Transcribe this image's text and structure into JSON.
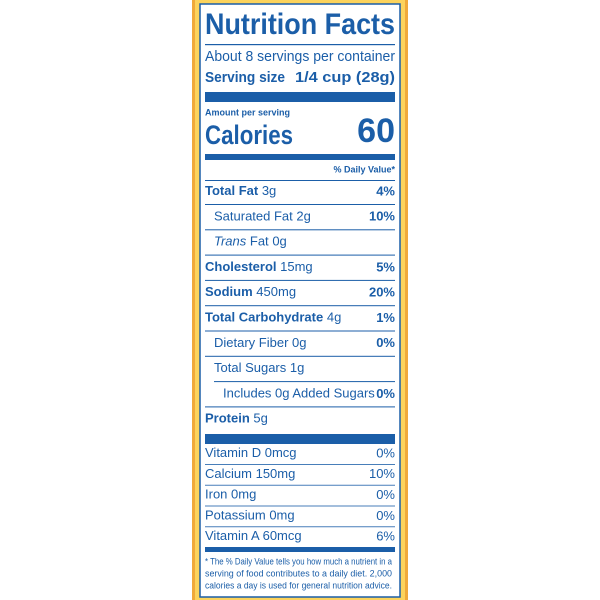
{
  "header": {
    "title": "Nutrition Facts",
    "servings": "About 8 servings per container",
    "serving_size_label": "Serving size",
    "serving_size_value": "1/4 cup (28g)"
  },
  "calories": {
    "amount_label": "Amount per serving",
    "label": "Calories",
    "value": "60"
  },
  "daily_value_header": "% Daily Value*",
  "nutrients": [
    {
      "name": "Total Fat",
      "amount": "3g",
      "dv": "4%"
    },
    {
      "name": "Saturated Fat",
      "amount": "2g",
      "dv": "10%"
    },
    {
      "prefix": "Trans",
      "name": "Fat",
      "amount": "0g"
    },
    {
      "name": "Cholesterol",
      "amount": "15mg",
      "dv": "5%"
    },
    {
      "name": "Sodium",
      "amount": "450mg",
      "dv": "20%"
    },
    {
      "name": "Total Carbohydrate",
      "amount": "4g",
      "dv": "1%"
    },
    {
      "name": "Dietary Fiber",
      "amount": "0g",
      "dv": "0%"
    },
    {
      "name": "Total Sugars",
      "amount": "1g"
    },
    {
      "name": "Includes 0g Added Sugars",
      "dv": "0%"
    },
    {
      "name": "Protein",
      "amount": "5g"
    }
  ],
  "vitamins": [
    {
      "name": "Vitamin D",
      "amount": "0mcg",
      "dv": "0%"
    },
    {
      "name": "Calcium",
      "amount": "150mg",
      "dv": "10%"
    },
    {
      "name": "Iron",
      "amount": "0mg",
      "dv": "0%"
    },
    {
      "name": "Potassium",
      "amount": "0mg",
      "dv": "0%"
    },
    {
      "name": "Vitamin A",
      "amount": "60mcg",
      "dv": "6%"
    }
  ],
  "footnote": {
    "lines": [
      "* The % Daily Value tells you how much a nutrient in a",
      "serving of food contributes to a daily diet. 2,000",
      "calories a day is used for general nutrition advice."
    ]
  }
}
